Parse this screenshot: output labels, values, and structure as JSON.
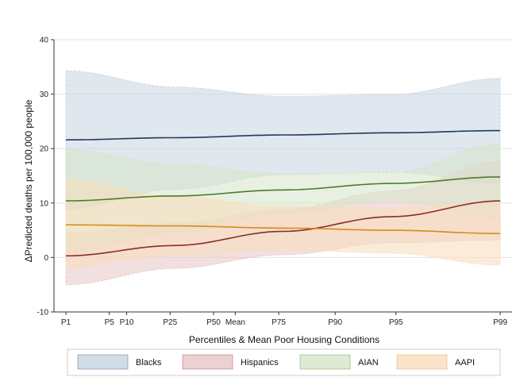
{
  "chart_data": {
    "type": "line",
    "title": "",
    "xlabel": "Percentiles & Mean Poor Housing Conditions",
    "ylabel": "ΔPredicted deaths per 100,000 people",
    "ylim": [
      -10,
      40
    ],
    "yticks": [
      -10,
      0,
      10,
      20,
      30,
      40
    ],
    "grid": true,
    "legend_position": "bottom",
    "x_ticks": [
      {
        "label": "P1",
        "x": 0
      },
      {
        "label": "P5",
        "x": 10
      },
      {
        "label": "P10",
        "x": 14
      },
      {
        "label": "P25",
        "x": 24
      },
      {
        "label": "P50",
        "x": 34
      },
      {
        "label": "Mean",
        "x": 39
      },
      {
        "label": "P75",
        "x": 49
      },
      {
        "label": "P90",
        "x": 62
      },
      {
        "label": "P95",
        "x": 76
      },
      {
        "label": "P99",
        "x": 100
      }
    ],
    "xlim": [
      0,
      100
    ],
    "series": [
      {
        "name": "Blacks",
        "line_color": "#1f3a5f",
        "band_color": "#c6d3e0",
        "x": [
          0,
          25,
          50,
          75,
          100
        ],
        "values": [
          21.6,
          22.0,
          22.5,
          22.9,
          23.3
        ],
        "upper": [
          34.3,
          31.3,
          29.6,
          29.9,
          32.9
        ],
        "lower": [
          8.9,
          12.5,
          15.2,
          15.7,
          13.7
        ]
      },
      {
        "name": "Hispanics",
        "line_color": "#8b2b2b",
        "band_color": "#e8c4c4",
        "x": [
          0,
          25,
          50,
          75,
          100
        ],
        "values": [
          0.3,
          2.2,
          4.8,
          7.5,
          10.4
        ],
        "upper": [
          4.5,
          6.3,
          8.8,
          12.2,
          17.6
        ],
        "lower": [
          -5.0,
          -2.0,
          0.5,
          2.7,
          3.2
        ]
      },
      {
        "name": "AIAN",
        "line_color": "#4f7a2a",
        "band_color": "#d6e5c8",
        "x": [
          0,
          25,
          50,
          75,
          100
        ],
        "values": [
          10.4,
          11.3,
          12.4,
          13.6,
          14.8
        ],
        "upper": [
          19.8,
          17.2,
          15.4,
          15.6,
          20.9
        ],
        "lower": [
          1.0,
          4.5,
          8.0,
          10.5,
          7.3
        ]
      },
      {
        "name": "AAPI",
        "line_color": "#d98a1c",
        "band_color": "#f8ddbb",
        "x": [
          0,
          25,
          50,
          75,
          100
        ],
        "values": [
          6.0,
          5.8,
          5.4,
          5.0,
          4.4
        ],
        "upper": [
          14.4,
          11.2,
          9.3,
          9.2,
          10.3
        ],
        "lower": [
          -1.8,
          0.4,
          1.4,
          0.8,
          -1.4
        ]
      }
    ]
  }
}
